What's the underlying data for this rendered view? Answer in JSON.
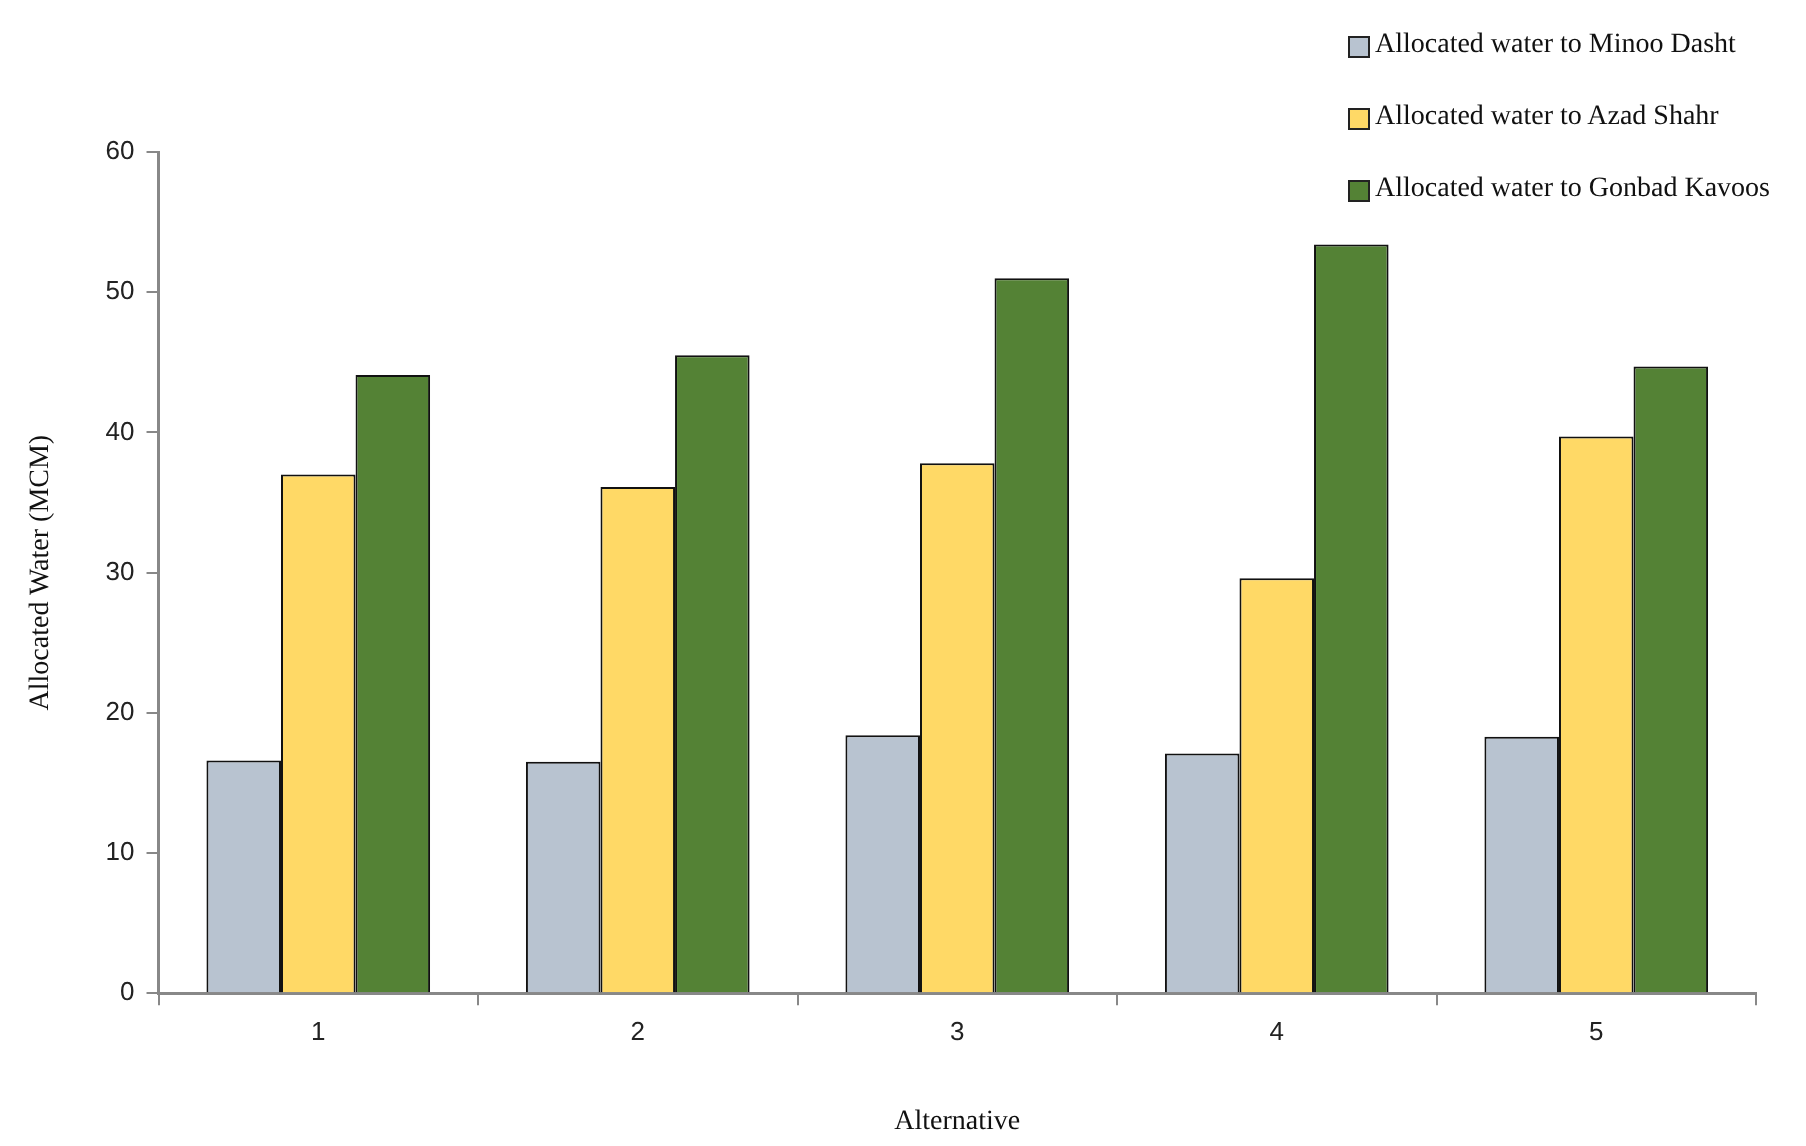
{
  "chart_data": {
    "type": "bar",
    "xlabel": "Alternative",
    "ylabel": "Allocated Water (MCM)",
    "categories": [
      "1",
      "2",
      "3",
      "4",
      "5"
    ],
    "series": [
      {
        "name": "Allocated water to Minoo Dasht",
        "color": "#b8c3d0",
        "values": [
          16.6,
          16.5,
          18.4,
          17.1,
          18.3
        ]
      },
      {
        "name": "Allocated water to Azad Shahr",
        "color": "#ffd966",
        "values": [
          37.0,
          36.1,
          37.8,
          29.6,
          39.7
        ]
      },
      {
        "name": "Allocated water to Gonbad Kavoos",
        "color": "#548235",
        "values": [
          44.1,
          45.5,
          51.0,
          53.4,
          44.7
        ]
      }
    ],
    "ylim": [
      0,
      60
    ],
    "yticks": [
      0,
      10,
      20,
      30,
      40,
      50,
      60
    ],
    "grid": false,
    "legend": "top right"
  }
}
